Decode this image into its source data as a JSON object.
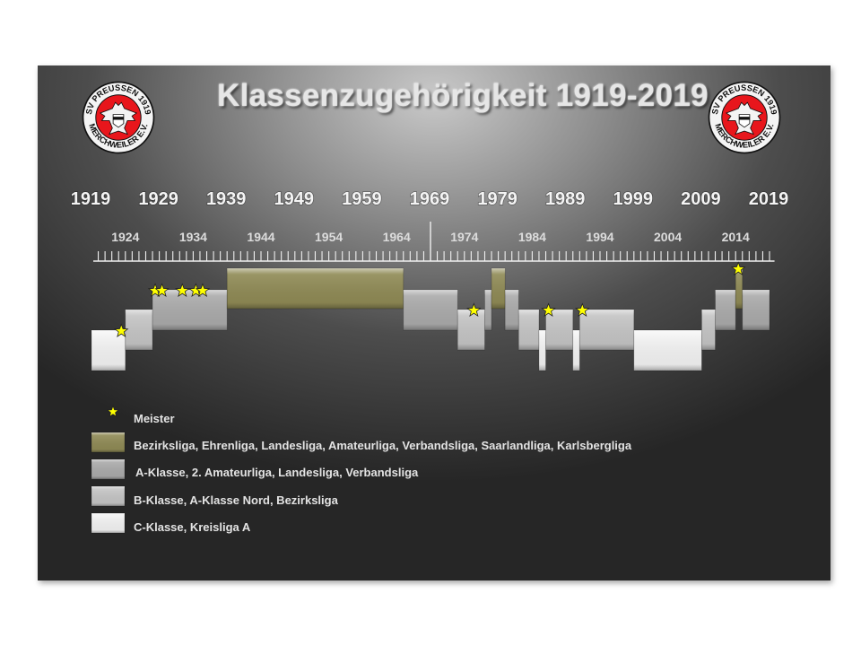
{
  "title": "Klassenzugehörigkeit 1919-2019",
  "logo": {
    "ring_text": "SV PREUSSEN 1919 MERCHWEILER E.V."
  },
  "colors": {
    "tier1": "#8f8a55",
    "tier2": "#aaaaaa",
    "tier3": "#c4c4c4",
    "tier4": "#f2f2f2",
    "star": "#ffff00",
    "logo_red": "#e8161c"
  },
  "chart_data": {
    "type": "timeline",
    "title": "Klassenzugehörigkeit 1919-2019",
    "upper_ticks": [
      "1919",
      "1929",
      "1939",
      "1949",
      "1959",
      "1969",
      "1979",
      "1989",
      "1999",
      "2009",
      "2019"
    ],
    "lower_ticks": [
      "1924",
      "1934",
      "1944",
      "1954",
      "1964",
      "1974",
      "1984",
      "1994",
      "2004",
      "2014"
    ],
    "x_range": [
      1919,
      2020
    ],
    "tiers": [
      {
        "level": 1,
        "label": "Bezirksliga, Ehrenliga, Landesliga, Amateurliga, Verbandsliga, Saarlandliga, Karlsbergliga"
      },
      {
        "level": 2,
        "label": "A-Klasse, 2. Amateurliga, Landesliga, Verbandsliga"
      },
      {
        "level": 3,
        "label": "B-Klasse, A-Klasse Nord, Bezirksliga"
      },
      {
        "level": 4,
        "label": "C-Klasse, Kreisliga A"
      }
    ],
    "segments": [
      {
        "start": 1919,
        "end": 1924,
        "level": 4
      },
      {
        "start": 1924,
        "end": 1928,
        "level": 3
      },
      {
        "start": 1928,
        "end": 1939,
        "level": 2
      },
      {
        "start": 1939,
        "end": 1965,
        "level": 1
      },
      {
        "start": 1965,
        "end": 1973,
        "level": 2
      },
      {
        "start": 1973,
        "end": 1977,
        "level": 3
      },
      {
        "start": 1977,
        "end": 1978,
        "level": 2
      },
      {
        "start": 1978,
        "end": 1980,
        "level": 1
      },
      {
        "start": 1980,
        "end": 1982,
        "level": 2
      },
      {
        "start": 1982,
        "end": 1985,
        "level": 3
      },
      {
        "start": 1985,
        "end": 1986,
        "level": 4
      },
      {
        "start": 1986,
        "end": 1990,
        "level": 3
      },
      {
        "start": 1990,
        "end": 1991,
        "level": 4
      },
      {
        "start": 1991,
        "end": 1999,
        "level": 3
      },
      {
        "start": 1999,
        "end": 2009,
        "level": 4
      },
      {
        "start": 2009,
        "end": 2011,
        "level": 3
      },
      {
        "start": 2011,
        "end": 2014,
        "level": 2
      },
      {
        "start": 2014,
        "end": 2015,
        "level": 1
      },
      {
        "start": 2015,
        "end": 2019,
        "level": 2
      }
    ],
    "champion_years": [
      1923,
      1928,
      1929,
      1932,
      1934,
      1935,
      1975,
      1986,
      1991,
      2014
    ],
    "legend_meister": "Meister"
  }
}
